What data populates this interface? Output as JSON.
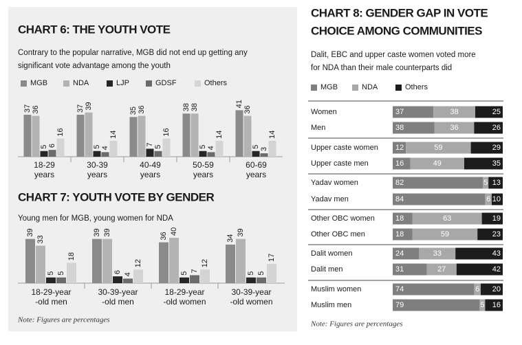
{
  "chart_data": [
    {
      "type": "bar",
      "title": "CHART 6: THE YOUTH VOTE",
      "subtitle": [
        "Contrary to the popular narrative, MGB did not end up getting any",
        "significant vote advantage among the youth"
      ],
      "legend": true,
      "categories": [
        [
          "18-29",
          "years"
        ],
        [
          "30-39",
          "years"
        ],
        [
          "40-49",
          "years"
        ],
        [
          "50-59",
          "years"
        ],
        [
          "60-69",
          "years"
        ]
      ],
      "series": [
        {
          "name": "MGB",
          "color": "#8a8a8a",
          "values": [
            37,
            37,
            35,
            38,
            41
          ]
        },
        {
          "name": "NDA",
          "color": "#b3b3b3",
          "values": [
            36,
            39,
            36,
            38,
            36
          ]
        },
        {
          "name": "LJP",
          "color": "#262626",
          "values": [
            5,
            5,
            7,
            5,
            5
          ]
        },
        {
          "name": "GDSF",
          "color": "#6b6b6b",
          "values": [
            6,
            4,
            5,
            4,
            3
          ]
        },
        {
          "name": "Others",
          "color": "#d4d4d4",
          "values": [
            16,
            14,
            16,
            14,
            14
          ]
        }
      ]
    },
    {
      "type": "bar",
      "title": "CHART 7: YOUTH VOTE BY GENDER",
      "subtitle": [
        "Young men for MGB, young women for NDA"
      ],
      "legend": false,
      "categories": [
        [
          "18-29-year",
          "-old men"
        ],
        [
          "30-39-year",
          "-old men"
        ],
        [
          "18-29-year",
          "-old women"
        ],
        [
          "30-39-year",
          "-old women"
        ]
      ],
      "series": [
        {
          "color": "#8a8a8a",
          "values": [
            39,
            39,
            36,
            34
          ]
        },
        {
          "color": "#b3b3b3",
          "values": [
            33,
            39,
            40,
            39
          ]
        },
        {
          "color": "#262626",
          "values": [
            5,
            6,
            5,
            5
          ]
        },
        {
          "color": "#6b6b6b",
          "values": [
            5,
            4,
            7,
            5
          ]
        },
        {
          "color": "#d4d4d4",
          "values": [
            18,
            12,
            12,
            17
          ]
        }
      ],
      "note": "Note: Figures are percentages"
    },
    {
      "type": "stacked_barh",
      "title": [
        "CHART 8: GENDER GAP IN VOTE",
        "CHOICE AMONG COMMUNITIES"
      ],
      "subtitle": [
        "Dalit, EBC and upper caste women voted more",
        "for NDA than their male counterparts did"
      ],
      "legend": true,
      "categories": [
        "Women",
        "Men",
        "Upper caste women",
        "Upper caste men",
        "Yadav women",
        "Yadav men",
        "Other OBC women",
        "Other OBC men",
        "Dalit women",
        "Dalit men",
        "Muslim women",
        "Muslim men"
      ],
      "series": [
        {
          "name": "MGB",
          "color": "#7f7f7f",
          "values": [
            37,
            38,
            12,
            16,
            82,
            84,
            18,
            18,
            24,
            31,
            74,
            79
          ]
        },
        {
          "name": "NDA",
          "color": "#a8a8a8",
          "values": [
            38,
            36,
            59,
            49,
            5,
            6,
            63,
            59,
            33,
            27,
            6,
            5
          ]
        },
        {
          "name": "Others",
          "color": "#1c1c1c",
          "values": [
            25,
            26,
            29,
            35,
            13,
            10,
            19,
            23,
            43,
            42,
            20,
            16
          ]
        }
      ],
      "note": "Note: Figures are percentages"
    }
  ]
}
